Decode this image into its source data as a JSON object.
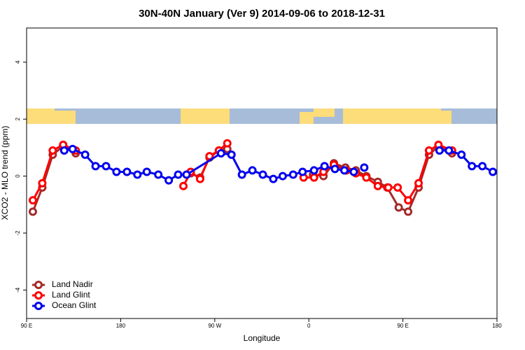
{
  "chart_data": {
    "type": "line",
    "title": "30N-40N January (Ver 9)   2014-09-06 to 2018-12-31",
    "xlabel": "Longitude",
    "ylabel": "XCO2 - MLO trend (ppm)",
    "xlim": [
      90,
      540
    ],
    "ylim": [
      -5,
      5.2
    ],
    "xticks": [
      {
        "value": 90,
        "label": "90 E"
      },
      {
        "value": 180,
        "label": "180"
      },
      {
        "value": 270,
        "label": "90 W"
      },
      {
        "value": 360,
        "label": "0"
      },
      {
        "value": 450,
        "label": "90 E"
      },
      {
        "value": 540,
        "label": "180"
      }
    ],
    "yticks": [
      -4,
      -2,
      0,
      2,
      4
    ],
    "legend": "bottom-left",
    "series": [
      {
        "name": "Land Nadir",
        "color": "#a52a2a",
        "x": [
          96,
          105,
          115,
          125,
          137,
          null,
          247,
          256,
          265,
          274,
          282,
          null,
          364,
          374,
          384,
          395,
          405,
          415,
          426,
          435,
          446,
          455,
          465,
          475,
          484,
          497
        ],
        "values": [
          -1.25,
          -0.4,
          0.75,
          1.05,
          0.8,
          null,
          0.1,
          -0.05,
          0.65,
          0.9,
          0.95,
          null,
          0.05,
          0.0,
          0.45,
          0.3,
          0.2,
          0.0,
          -0.2,
          -0.4,
          -1.1,
          -1.25,
          -0.4,
          0.75,
          1.05,
          0.8
        ]
      },
      {
        "name": "Land Glint",
        "color": "#ff0000",
        "x": [
          96,
          105,
          115,
          125,
          137,
          null,
          240,
          247,
          256,
          265,
          274,
          282,
          null,
          355,
          365,
          374,
          384,
          396,
          405,
          415,
          426,
          436,
          445,
          455,
          465,
          475,
          484,
          497
        ],
        "values": [
          -0.85,
          -0.25,
          0.9,
          1.1,
          0.9,
          null,
          -0.35,
          0.15,
          -0.1,
          0.7,
          0.9,
          1.15,
          null,
          -0.05,
          -0.05,
          0.15,
          0.4,
          0.2,
          0.1,
          -0.05,
          -0.35,
          -0.4,
          -0.4,
          -0.85,
          -0.25,
          0.9,
          1.1,
          0.9
        ]
      },
      {
        "name": "Ocean Glint",
        "color": "#0000ee",
        "x": [
          126,
          134,
          146,
          156,
          166,
          176,
          186,
          196,
          205,
          216,
          226,
          235,
          243,
          276,
          286,
          296,
          306,
          316,
          326,
          335,
          345,
          354,
          365,
          375,
          385,
          394,
          403,
          null,
          413,
          null,
          485,
          494,
          506,
          516,
          526,
          536
        ],
        "values": [
          0.9,
          0.95,
          0.75,
          0.35,
          0.35,
          0.15,
          0.15,
          0.05,
          0.15,
          0.05,
          -0.15,
          0.05,
          0.05,
          0.8,
          0.75,
          0.05,
          0.2,
          0.05,
          -0.1,
          0.0,
          0.05,
          0.15,
          0.2,
          0.35,
          0.25,
          0.2,
          0.15,
          null,
          0.3,
          null,
          0.9,
          0.9,
          0.75,
          0.35,
          0.35,
          0.15
        ]
      }
    ]
  }
}
